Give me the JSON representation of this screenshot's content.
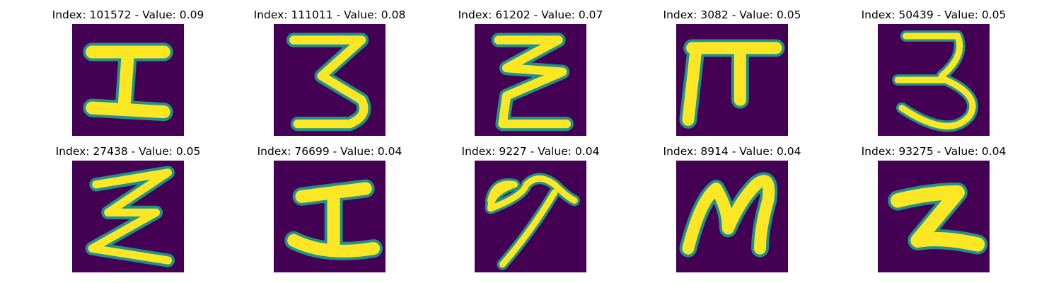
{
  "colors": {
    "background": "#440154",
    "glyph_core": "#fde725",
    "glyph_mid": "#2a9d8f",
    "glyph_edge": "#21918c"
  },
  "panels": [
    {
      "title": "Index: 101572 - Value: 0.09",
      "glyph": "sigma-like"
    },
    {
      "title": "Index: 111011 - Value: 0.08",
      "glyph": "three-like"
    },
    {
      "title": "Index: 61202 - Value: 0.07",
      "glyph": "z-stack"
    },
    {
      "title": "Index: 3082 - Value: 0.05",
      "glyph": "pi-like"
    },
    {
      "title": "Index: 50439 - Value: 0.05",
      "glyph": "three-open"
    },
    {
      "title": "Index: 27438 - Value: 0.05",
      "glyph": "sigma-thin"
    },
    {
      "title": "Index: 76699 - Value: 0.04",
      "glyph": "capital-i"
    },
    {
      "title": "Index: 9227 - Value: 0.04",
      "glyph": "script-loop"
    },
    {
      "title": "Index: 8914 - Value: 0.04",
      "glyph": "letter-m"
    },
    {
      "title": "Index: 93275 - Value: 0.04",
      "glyph": "letter-z"
    }
  ]
}
